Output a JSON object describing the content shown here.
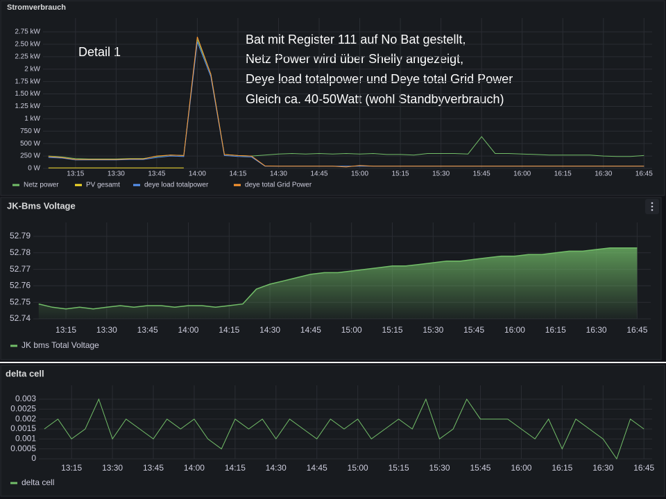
{
  "chart_data": [
    {
      "type": "line",
      "title": "Stromverbrauch",
      "annotations": [
        "Detail 1",
        "Bat mit Register 111 auf  No Bat gestellt,",
        "Netz Power wird über Shelly angezeigt,",
        "Deye load totalpower und Deye total Grid Power",
        "Gleich ca. 40-50Watt (wohl Standbyverbrauch)"
      ],
      "x": [
        "13:05",
        "13:10",
        "13:15",
        "13:20",
        "13:25",
        "13:30",
        "13:35",
        "13:40",
        "13:45",
        "13:50",
        "13:55",
        "14:00",
        "14:05",
        "14:10",
        "14:15",
        "14:20",
        "14:25",
        "14:30",
        "14:35",
        "14:40",
        "14:45",
        "14:50",
        "14:55",
        "15:00",
        "15:05",
        "15:10",
        "15:15",
        "15:20",
        "15:25",
        "15:30",
        "15:35",
        "15:40",
        "15:45",
        "15:50",
        "15:55",
        "16:00",
        "16:05",
        "16:10",
        "16:15",
        "16:20",
        "16:25",
        "16:30",
        "16:35",
        "16:40",
        "16:45"
      ],
      "series": [
        {
          "name": "Netz power",
          "color": "#73bf69",
          "values": [
            250,
            230,
            200,
            190,
            190,
            190,
            200,
            200,
            240,
            270,
            260,
            2600,
            1900,
            280,
            260,
            250,
            270,
            290,
            300,
            290,
            300,
            290,
            300,
            290,
            300,
            280,
            280,
            270,
            300,
            300,
            300,
            290,
            640,
            300,
            300,
            290,
            280,
            270,
            270,
            270,
            270,
            250,
            240,
            240,
            260
          ]
        },
        {
          "name": "PV gesamt",
          "color": "#fade2a",
          "values": [
            10,
            10,
            10,
            10,
            10,
            10,
            10,
            10,
            10,
            10,
            10,
            null,
            null,
            null,
            null,
            null,
            null,
            null,
            null,
            null,
            null,
            null,
            null,
            null,
            null,
            null,
            null,
            null,
            null,
            null,
            null,
            null,
            null,
            null,
            null,
            null,
            null,
            null,
            null,
            null,
            null,
            null,
            null,
            null,
            null
          ]
        },
        {
          "name": "deye load totalpower",
          "color": "#5794f2",
          "values": [
            220,
            210,
            170,
            170,
            170,
            170,
            180,
            180,
            220,
            250,
            240,
            2550,
            1850,
            260,
            240,
            230,
            45,
            45,
            45,
            45,
            45,
            45,
            45,
            45,
            45,
            45,
            45,
            45,
            45,
            45,
            45,
            45,
            45,
            45,
            45,
            45,
            45,
            45,
            45,
            45,
            45,
            45,
            45,
            45,
            45
          ]
        },
        {
          "name": "deye total Grid Power",
          "color": "#ff9830",
          "values": [
            240,
            220,
            180,
            180,
            180,
            180,
            190,
            190,
            250,
            270,
            260,
            2650,
            1900,
            280,
            260,
            250,
            50,
            45,
            45,
            45,
            45,
            45,
            30,
            60,
            45,
            45,
            45,
            45,
            45,
            45,
            45,
            45,
            45,
            45,
            45,
            45,
            45,
            45,
            45,
            45,
            45,
            45,
            45,
            45,
            45
          ]
        }
      ],
      "xlim": [
        "13:03",
        "16:48"
      ],
      "xticks": [
        "13:15",
        "13:30",
        "13:45",
        "14:00",
        "14:15",
        "14:30",
        "14:45",
        "15:00",
        "15:15",
        "15:30",
        "15:45",
        "16:00",
        "16:15",
        "16:30",
        "16:45"
      ],
      "ylim": [
        0,
        2750
      ],
      "yticks": [
        {
          "value": 0,
          "label": "0 W"
        },
        {
          "value": 250,
          "label": "250 W"
        },
        {
          "value": 500,
          "label": "500 W"
        },
        {
          "value": 750,
          "label": "750 W"
        },
        {
          "value": 1000,
          "label": "1 kW"
        },
        {
          "value": 1250,
          "label": "1.25 kW"
        },
        {
          "value": 1500,
          "label": "1.50 kW"
        },
        {
          "value": 1750,
          "label": "1.75 kW"
        },
        {
          "value": 2000,
          "label": "2 kW"
        },
        {
          "value": 2250,
          "label": "2.25 kW"
        },
        {
          "value": 2500,
          "label": "2.50 kW"
        },
        {
          "value": 2750,
          "label": "2.75 kW"
        }
      ],
      "grid": true
    },
    {
      "type": "area",
      "title": "JK-Bms Voltage",
      "x": [
        "13:05",
        "13:10",
        "13:15",
        "13:20",
        "13:25",
        "13:30",
        "13:35",
        "13:40",
        "13:45",
        "13:50",
        "13:55",
        "14:00",
        "14:05",
        "14:10",
        "14:15",
        "14:20",
        "14:25",
        "14:30",
        "14:35",
        "14:40",
        "14:45",
        "14:50",
        "14:55",
        "15:00",
        "15:05",
        "15:10",
        "15:15",
        "15:20",
        "15:25",
        "15:30",
        "15:35",
        "15:40",
        "15:45",
        "15:50",
        "15:55",
        "16:00",
        "16:05",
        "16:10",
        "16:15",
        "16:20",
        "16:25",
        "16:30",
        "16:35",
        "16:40",
        "16:45"
      ],
      "series": [
        {
          "name": "JK bms Total Voltage",
          "color": "#73bf69",
          "values": [
            52.749,
            52.747,
            52.746,
            52.747,
            52.746,
            52.747,
            52.748,
            52.747,
            52.748,
            52.748,
            52.747,
            52.748,
            52.748,
            52.747,
            52.748,
            52.749,
            52.758,
            52.761,
            52.763,
            52.765,
            52.767,
            52.768,
            52.768,
            52.769,
            52.77,
            52.771,
            52.772,
            52.772,
            52.773,
            52.774,
            52.775,
            52.775,
            52.776,
            52.777,
            52.778,
            52.778,
            52.779,
            52.779,
            52.78,
            52.781,
            52.781,
            52.782,
            52.783,
            52.783,
            52.783
          ]
        }
      ],
      "xlim": [
        "13:03",
        "16:50"
      ],
      "xticks": [
        "13:15",
        "13:30",
        "13:45",
        "14:00",
        "14:15",
        "14:30",
        "14:45",
        "15:00",
        "15:15",
        "15:30",
        "15:45",
        "16:00",
        "16:15",
        "16:30",
        "16:45"
      ],
      "ylim": [
        52.74,
        52.79
      ],
      "yticks": [
        52.74,
        52.75,
        52.76,
        52.77,
        52.78,
        52.79
      ],
      "grid": true
    },
    {
      "type": "line",
      "title": "delta cell",
      "x": [
        "13:05",
        "13:10",
        "13:15",
        "13:20",
        "13:25",
        "13:30",
        "13:35",
        "13:40",
        "13:45",
        "13:50",
        "13:55",
        "14:00",
        "14:05",
        "14:10",
        "14:15",
        "14:20",
        "14:25",
        "14:30",
        "14:35",
        "14:40",
        "14:45",
        "14:50",
        "14:55",
        "15:00",
        "15:05",
        "15:10",
        "15:15",
        "15:20",
        "15:25",
        "15:30",
        "15:35",
        "15:40",
        "15:45",
        "15:50",
        "15:55",
        "16:00",
        "16:05",
        "16:10",
        "16:15",
        "16:20",
        "16:25",
        "16:30",
        "16:35",
        "16:40",
        "16:45"
      ],
      "series": [
        {
          "name": "delta cell",
          "color": "#73bf69",
          "values": [
            0.0015,
            0.002,
            0.001,
            0.0015,
            0.003,
            0.001,
            0.002,
            0.0015,
            0.001,
            0.002,
            0.0015,
            0.002,
            0.001,
            0.0005,
            0.002,
            0.0015,
            0.002,
            0.001,
            0.002,
            0.0015,
            0.001,
            0.002,
            0.0015,
            0.002,
            0.001,
            0.0015,
            0.002,
            0.0015,
            0.003,
            0.001,
            0.0015,
            0.003,
            0.002,
            0.002,
            0.002,
            0.0015,
            0.001,
            0.002,
            0.0005,
            0.002,
            0.0015,
            0.001,
            0,
            0.002,
            0.0015
          ]
        }
      ],
      "xlim": [
        "13:03",
        "16:48"
      ],
      "xticks": [
        "13:15",
        "13:30",
        "13:45",
        "14:00",
        "14:15",
        "14:30",
        "14:45",
        "15:00",
        "15:15",
        "15:30",
        "15:45",
        "16:00",
        "16:15",
        "16:30",
        "16:45"
      ],
      "ylim": [
        0,
        0.003
      ],
      "yticks": [
        0,
        0.0005,
        0.001,
        0.0015,
        0.002,
        0.0025,
        0.003
      ],
      "grid": true
    }
  ]
}
